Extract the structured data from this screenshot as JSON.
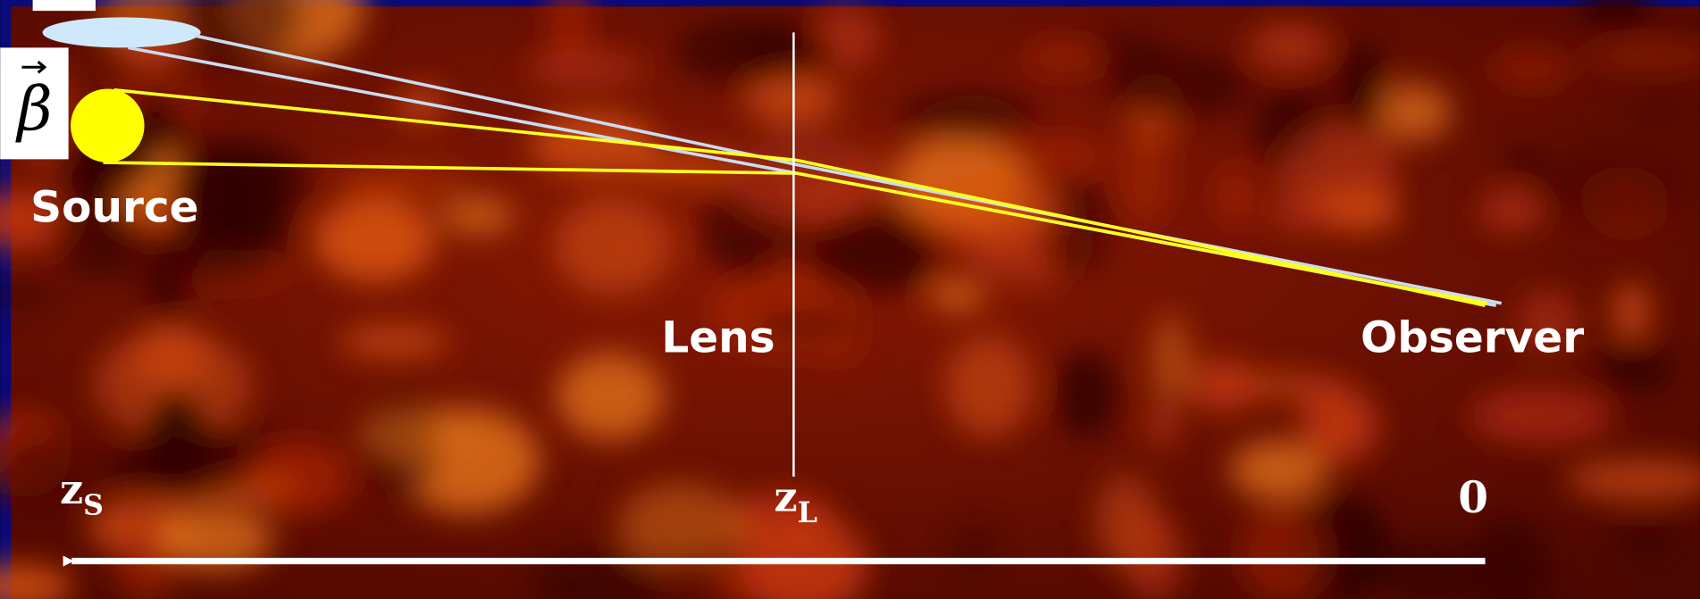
{
  "labels": {
    "source": "Source",
    "lens": "Lens",
    "observer": "Observer",
    "beta": "β"
  },
  "axis": {
    "source_redshift": {
      "symbol": "z",
      "subscript": "S"
    },
    "lens_redshift": {
      "symbol": "z",
      "subscript": "L"
    },
    "origin": "0"
  }
}
